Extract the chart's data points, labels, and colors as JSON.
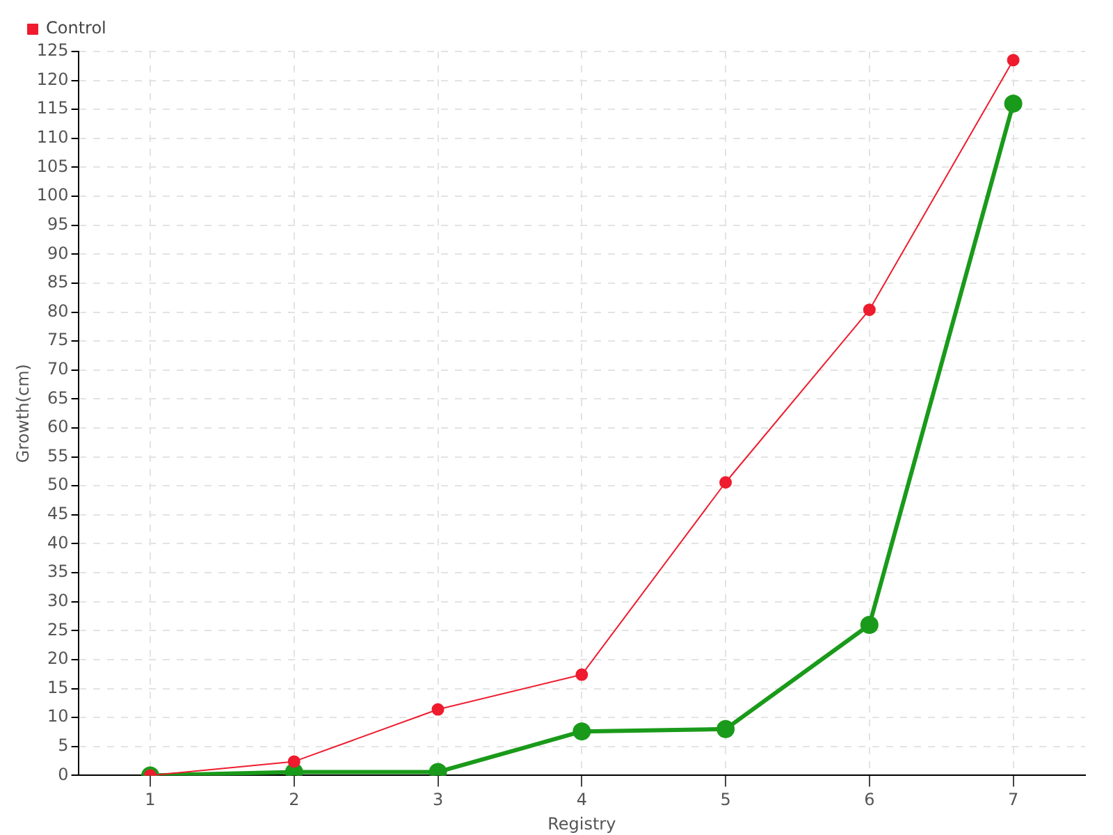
{
  "chart_data": {
    "type": "line",
    "xlabel": "Registry",
    "ylabel": "Growth(cm)",
    "categories": [
      "1",
      "2",
      "3",
      "4",
      "5",
      "6",
      "7"
    ],
    "series": [
      {
        "color": "#1a9a1a",
        "values": [
          0,
          0.6,
          0.6,
          7.6,
          8,
          26,
          116
        ]
      },
      {
        "name": "Control",
        "color": "#ee1c2e",
        "values": [
          0,
          2.4,
          11.4,
          17.4,
          50.6,
          80.4,
          123.5
        ]
      }
    ],
    "ylim": [
      0,
      125
    ],
    "yticks": [
      0,
      5,
      10,
      15,
      20,
      25,
      30,
      35,
      40,
      45,
      50,
      55,
      60,
      65,
      70,
      75,
      80,
      85,
      90,
      95,
      100,
      105,
      110,
      115,
      120,
      125
    ],
    "grid": true,
    "legend": "top left",
    "marker": "circle"
  }
}
